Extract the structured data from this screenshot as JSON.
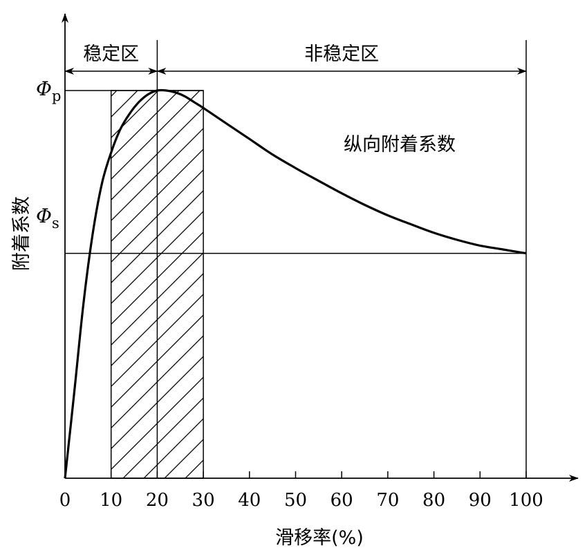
{
  "chart_data": {
    "type": "line",
    "title": "",
    "xlabel": "滑移率(%)",
    "ylabel": "附着系数",
    "xlim": [
      0,
      100
    ],
    "x_ticks": [
      0,
      10,
      20,
      30,
      40,
      50,
      60,
      70,
      80,
      90,
      100
    ],
    "tick_labels": [
      "0",
      "10",
      "20",
      "30",
      "40",
      "50",
      "60",
      "70",
      "80",
      "90",
      "100"
    ],
    "series": [
      {
        "name": "纵向附着系数",
        "x": [
          0,
          2,
          4,
          6,
          8,
          10,
          12,
          14,
          16,
          18,
          20,
          22,
          24,
          26,
          28,
          30,
          35,
          40,
          45,
          50,
          55,
          60,
          65,
          70,
          75,
          80,
          85,
          90,
          95,
          100
        ],
        "y": [
          0,
          0.22,
          0.45,
          0.63,
          0.76,
          0.84,
          0.9,
          0.94,
          0.97,
          0.99,
          1.0,
          1.0,
          0.995,
          0.985,
          0.97,
          0.955,
          0.915,
          0.875,
          0.835,
          0.8,
          0.767,
          0.735,
          0.705,
          0.678,
          0.655,
          0.633,
          0.615,
          0.6,
          0.59,
          0.58
        ]
      }
    ],
    "phi_p": 1.0,
    "phi_s": 0.58,
    "labels": {
      "phi_p": "Φp",
      "phi_s": "Φs",
      "curve": "纵向附着系数"
    },
    "regions": [
      {
        "name": "稳定区",
        "x_range": [
          0,
          20
        ]
      },
      {
        "name": "非稳定区",
        "x_range": [
          20,
          100
        ]
      }
    ],
    "hatched_region": {
      "x_range": [
        10,
        30
      ]
    },
    "grid": false,
    "legend": "none"
  },
  "symbols": {
    "phi": "Φ",
    "p": "p",
    "s": "s"
  }
}
